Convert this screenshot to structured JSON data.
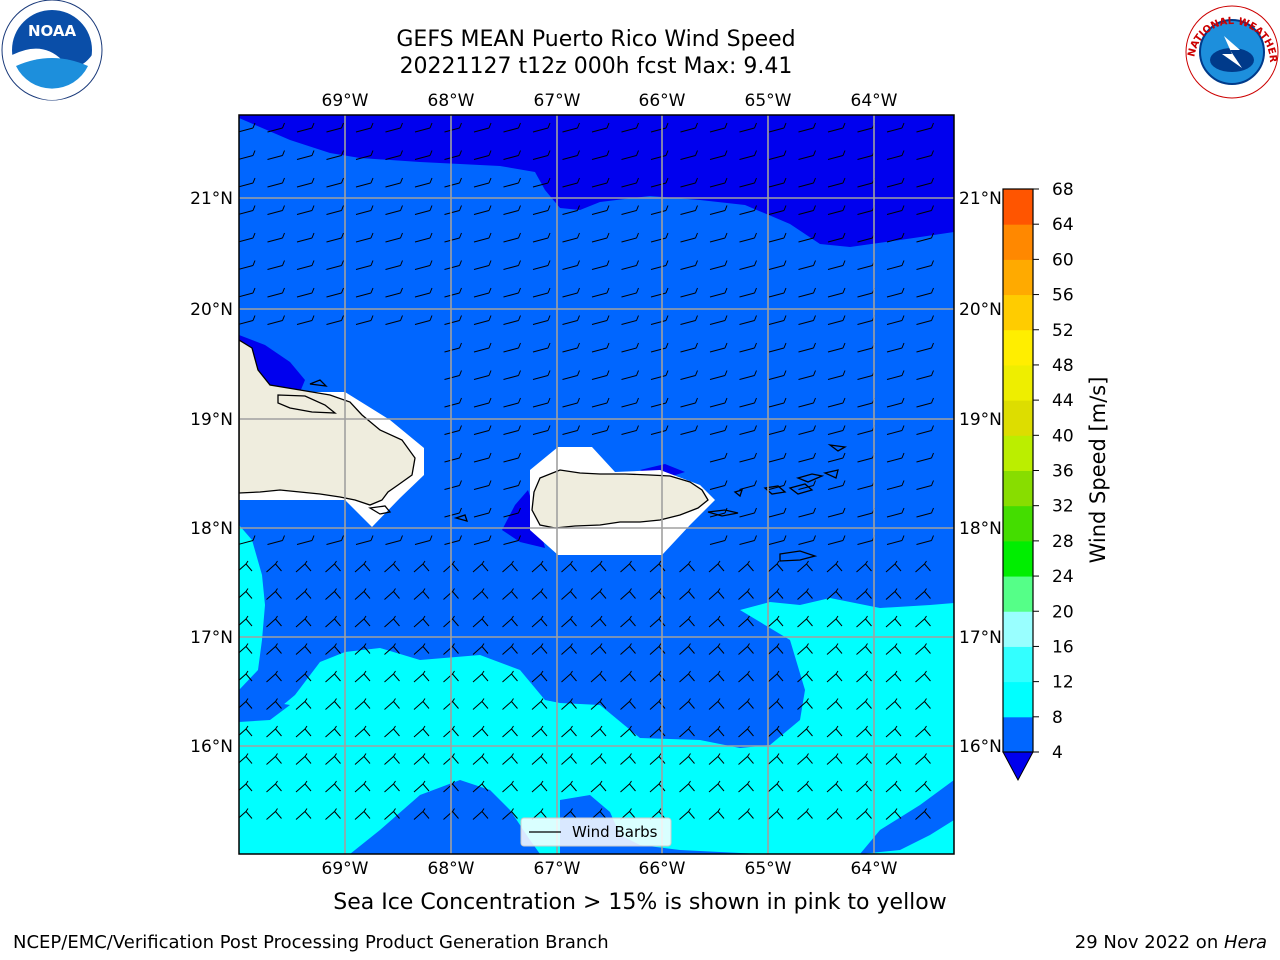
{
  "title": {
    "line1": "GEFS MEAN Puerto Rico Wind Speed",
    "line2": "20221127 t12z 000h fcst   Max: 9.41"
  },
  "axes": {
    "lon_labels": [
      "69°W",
      "68°W",
      "67°W",
      "66°W",
      "65°W",
      "64°W"
    ],
    "lat_labels": [
      "21°N",
      "20°N",
      "19°N",
      "18°N",
      "17°N",
      "16°N"
    ]
  },
  "colorbar": {
    "label": "Wind Speed [m/s]",
    "ticks": [
      "4",
      "8",
      "12",
      "16",
      "20",
      "24",
      "28",
      "32",
      "36",
      "40",
      "44",
      "48",
      "52",
      "56",
      "60",
      "64",
      "68"
    ],
    "colors": [
      "#0066ff",
      "#00ffff",
      "#33ffff",
      "#99ffff",
      "#55ff88",
      "#00ee00",
      "#44dd00",
      "#88dd00",
      "#bbee00",
      "#dddd00",
      "#eeee00",
      "#ffee00",
      "#ffcc00",
      "#ffaa00",
      "#ff8800",
      "#ff5500",
      "#ff2200"
    ],
    "under_color": "#0000ee"
  },
  "legend": {
    "label": "Wind Barbs"
  },
  "logos": {
    "left": "NOAA",
    "right": "NATIONAL WEATHER SERVICE"
  },
  "caption": "Sea Ice Concentration > 15% is shown in pink to yellow",
  "footer": {
    "left": "NCEP/EMC/Verification Post Processing Product Generation Branch",
    "right_date": "29 Nov 2022 on ",
    "right_host": "Hera"
  },
  "colors": {
    "band_lt4": "#0000ee",
    "band_4_8": "#0066ff",
    "band_8_12": "#00ffff",
    "land": "#efedde"
  }
}
